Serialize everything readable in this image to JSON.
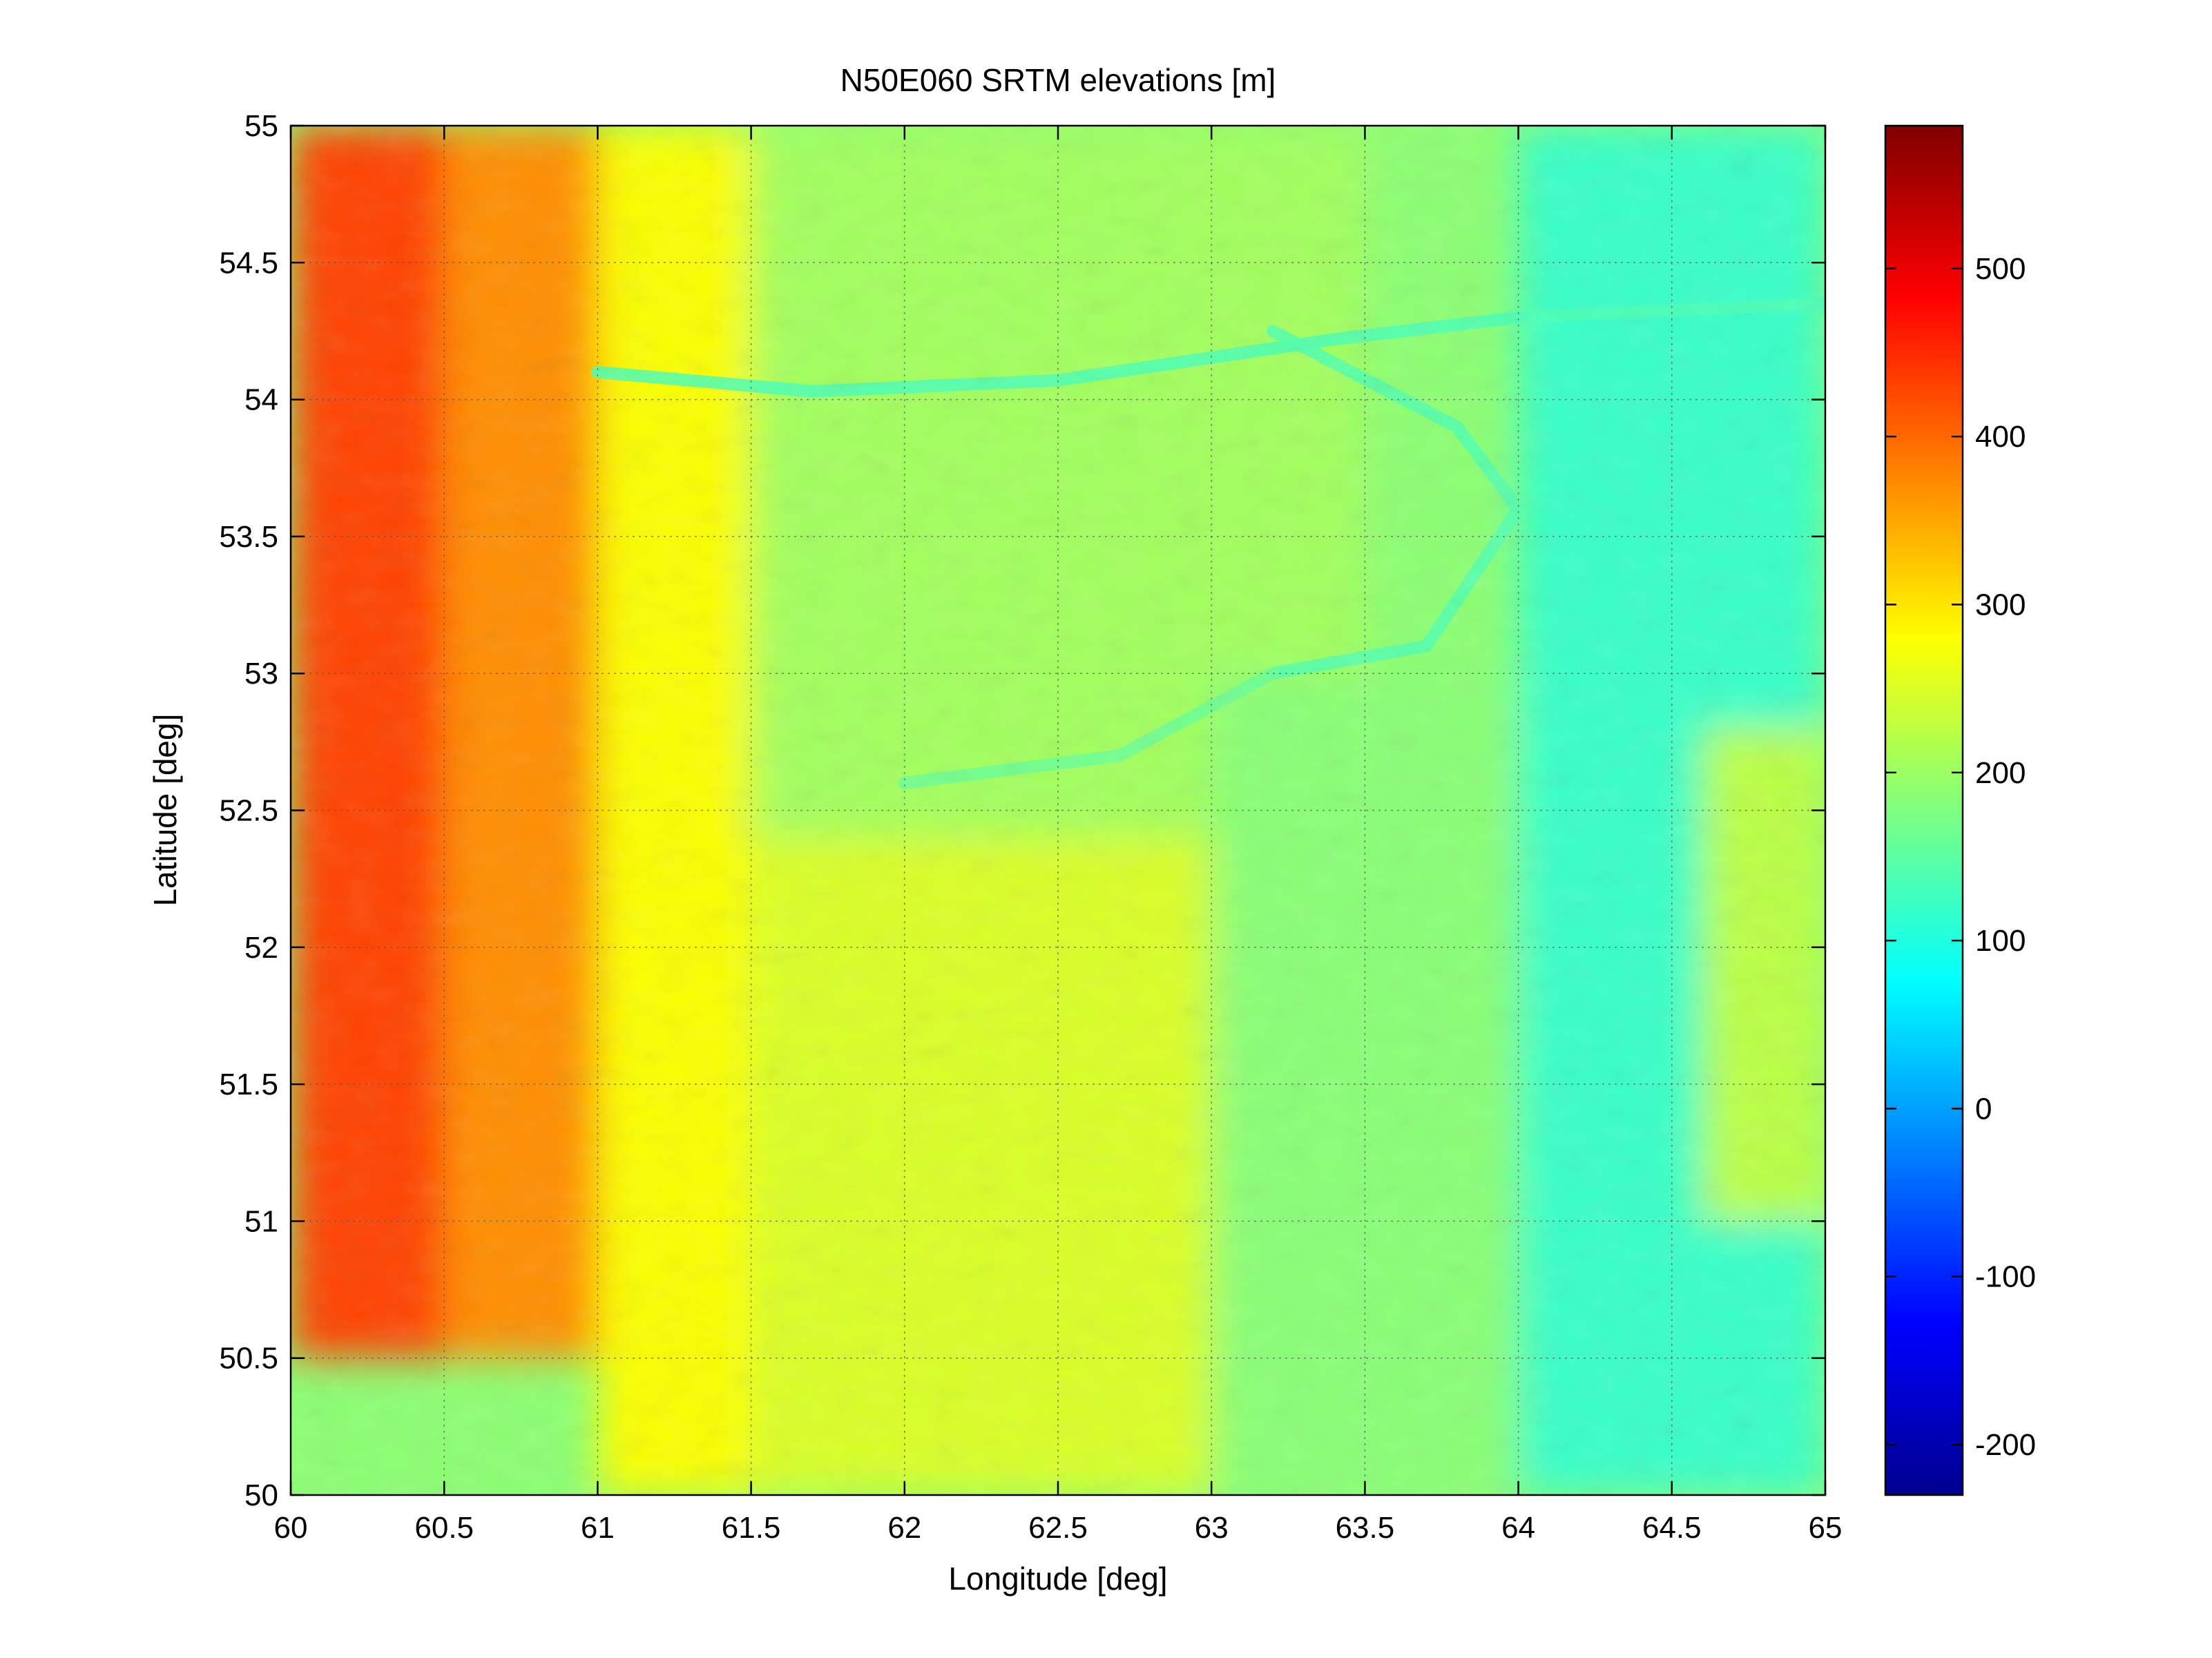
{
  "chart_data": {
    "type": "heatmap",
    "title": "N50E060 SRTM elevations [m]",
    "xlabel": "Longitude [deg]",
    "ylabel": "Latitude [deg]",
    "xlim": [
      60,
      65
    ],
    "ylim": [
      50,
      55
    ],
    "clim": [
      -230,
      585
    ],
    "grid": true,
    "colormap": "jet",
    "x_ticks": [
      60,
      60.5,
      61,
      61.5,
      62,
      62.5,
      63,
      63.5,
      64,
      64.5,
      65
    ],
    "x_tick_labels": [
      "60",
      "60.5",
      "61",
      "61.5",
      "62",
      "62.5",
      "63",
      "63.5",
      "64",
      "64.5",
      "65"
    ],
    "y_ticks": [
      50,
      50.5,
      51,
      51.5,
      52,
      52.5,
      53,
      53.5,
      54,
      54.5,
      55
    ],
    "y_tick_labels": [
      "50",
      "50.5",
      "51",
      "51.5",
      "52",
      "52.5",
      "53",
      "53.5",
      "54",
      "54.5",
      "55"
    ],
    "colorbar_ticks": [
      -200,
      -100,
      0,
      100,
      200,
      300,
      400,
      500
    ],
    "colorbar_tick_labels": [
      "-200",
      "-100",
      "0",
      "100",
      "200",
      "300",
      "400",
      "500"
    ],
    "elevation_zones": [
      {
        "lon": [
          60.0,
          60.5
        ],
        "lat": [
          50.5,
          55
        ],
        "elev": 430
      },
      {
        "lon": [
          60.5,
          61.0
        ],
        "lat": [
          50.5,
          55
        ],
        "elev": 370
      },
      {
        "lon": [
          61.0,
          61.5
        ],
        "lat": [
          51.2,
          52.2
        ],
        "elev": 330
      },
      {
        "lon": [
          61.0,
          61.5
        ],
        "lat": [
          50,
          55
        ],
        "elev": 275
      },
      {
        "lon": [
          61.5,
          63.0
        ],
        "lat": [
          50,
          52.4
        ],
        "elev": 250
      },
      {
        "lon": [
          61.5,
          63.5
        ],
        "lat": [
          52.4,
          55
        ],
        "elev": 205
      },
      {
        "lon": [
          63.0,
          64.0
        ],
        "lat": [
          50,
          53
        ],
        "elev": 185
      },
      {
        "lon": [
          64.0,
          65.0
        ],
        "lat": [
          50,
          55
        ],
        "elev": 120
      },
      {
        "lon": [
          64.6,
          65.0
        ],
        "lat": [
          51.0,
          52.8
        ],
        "elev": 225
      }
    ],
    "river_features": [
      {
        "points": [
          [
            61.0,
            54.1
          ],
          [
            61.7,
            54.03
          ],
          [
            62.5,
            54.07
          ],
          [
            63.4,
            54.22
          ],
          [
            64.0,
            54.3
          ],
          [
            65.0,
            54.35
          ]
        ],
        "elev": 135
      },
      {
        "points": [
          [
            63.2,
            54.25
          ],
          [
            63.8,
            53.9
          ],
          [
            64.0,
            53.6
          ],
          [
            63.7,
            53.1
          ],
          [
            63.2,
            53.0
          ]
        ],
        "elev": 140
      },
      {
        "points": [
          [
            63.2,
            53.0
          ],
          [
            62.7,
            52.7
          ],
          [
            62.0,
            52.6
          ]
        ],
        "elev": 160
      }
    ]
  }
}
